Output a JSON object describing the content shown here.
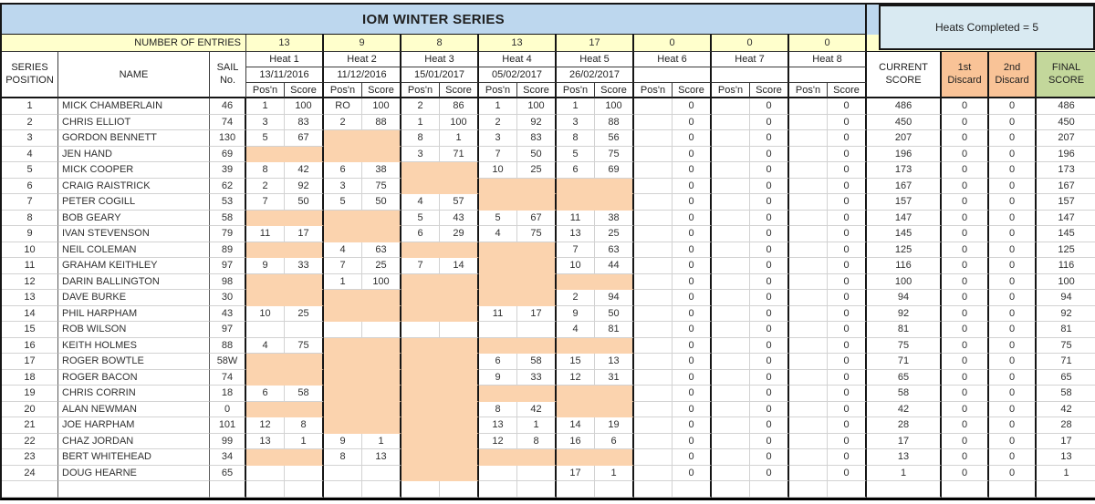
{
  "title": "IOM WINTER SERIES",
  "heats_completed": "Heats Completed = 5",
  "entries_label": "NUMBER OF ENTRIES",
  "left_headers": {
    "series": "SERIES POSITION",
    "name": "NAME",
    "sail": "SAIL No."
  },
  "subheaders": {
    "pos": "Pos'n",
    "score": "Score"
  },
  "right_headers": {
    "current": "CURRENT SCORE",
    "d1": "1st Discard",
    "d2": "2nd Discard",
    "final": "FINAL SCORE"
  },
  "heats": [
    {
      "label": "Heat 1",
      "date": "13/11/2016",
      "entries": "13"
    },
    {
      "label": "Heat 2",
      "date": "11/12/2016",
      "entries": "9"
    },
    {
      "label": "Heat 3",
      "date": "15/01/2017",
      "entries": "8"
    },
    {
      "label": "Heat 4",
      "date": "05/02/2017",
      "entries": "13"
    },
    {
      "label": "Heat 5",
      "date": "26/02/2017",
      "entries": "17"
    },
    {
      "label": "Heat 6",
      "date": "",
      "entries": "0"
    },
    {
      "label": "Heat 7",
      "date": "",
      "entries": "0"
    },
    {
      "label": "Heat 8",
      "date": "",
      "entries": "0"
    }
  ],
  "colors": {
    "title_bg": "#BDD7EE",
    "box_bg": "#D9EAF2",
    "yellow": "#FFFFCC",
    "orange": "#FBD3AE",
    "discard_hdr": "#F9C397",
    "final_hdr": "#C3D79B"
  },
  "rows": [
    {
      "pos": "1",
      "name": "MICK CHAMBERLAIN",
      "sail": "46",
      "h": [
        [
          "1",
          "100",
          "w"
        ],
        [
          "RO",
          "100",
          "w"
        ],
        [
          "2",
          "86",
          "w"
        ],
        [
          "1",
          "100",
          "w"
        ],
        [
          "1",
          "100",
          "w"
        ],
        [
          "",
          "0",
          "w"
        ],
        [
          "",
          "0",
          "w"
        ],
        [
          "",
          "0",
          "w"
        ]
      ],
      "current": "486",
      "d1": "0",
      "d2": "0",
      "final": "486"
    },
    {
      "pos": "2",
      "name": "CHRIS ELLIOT",
      "sail": "74",
      "h": [
        [
          "3",
          "83",
          "w"
        ],
        [
          "2",
          "88",
          "w"
        ],
        [
          "1",
          "100",
          "w"
        ],
        [
          "2",
          "92",
          "w"
        ],
        [
          "3",
          "88",
          "w"
        ],
        [
          "",
          "0",
          "w"
        ],
        [
          "",
          "0",
          "w"
        ],
        [
          "",
          "0",
          "w"
        ]
      ],
      "current": "450",
      "d1": "0",
      "d2": "0",
      "final": "450"
    },
    {
      "pos": "3",
      "name": "GORDON BENNETT",
      "sail": "130",
      "h": [
        [
          "5",
          "67",
          "w"
        ],
        [
          "",
          "",
          "o"
        ],
        [
          "8",
          "1",
          "w"
        ],
        [
          "3",
          "83",
          "w"
        ],
        [
          "8",
          "56",
          "w"
        ],
        [
          "",
          "0",
          "w"
        ],
        [
          "",
          "0",
          "w"
        ],
        [
          "",
          "0",
          "w"
        ]
      ],
      "current": "207",
      "d1": "0",
      "d2": "0",
      "final": "207"
    },
    {
      "pos": "4",
      "name": "JEN HAND",
      "sail": "69",
      "h": [
        [
          "",
          "",
          "o"
        ],
        [
          "",
          "",
          "o"
        ],
        [
          "3",
          "71",
          "w"
        ],
        [
          "7",
          "50",
          "w"
        ],
        [
          "5",
          "75",
          "w"
        ],
        [
          "",
          "0",
          "w"
        ],
        [
          "",
          "0",
          "w"
        ],
        [
          "",
          "0",
          "w"
        ]
      ],
      "current": "196",
      "d1": "0",
      "d2": "0",
      "final": "196"
    },
    {
      "pos": "5",
      "name": "MICK COOPER",
      "sail": "39",
      "h": [
        [
          "8",
          "42",
          "w"
        ],
        [
          "6",
          "38",
          "w"
        ],
        [
          "",
          "",
          "o"
        ],
        [
          "10",
          "25",
          "w"
        ],
        [
          "6",
          "69",
          "w"
        ],
        [
          "",
          "0",
          "w"
        ],
        [
          "",
          "0",
          "w"
        ],
        [
          "",
          "0",
          "w"
        ]
      ],
      "current": "173",
      "d1": "0",
      "d2": "0",
      "final": "173"
    },
    {
      "pos": "6",
      "name": "CRAIG RAISTRICK",
      "sail": "62",
      "h": [
        [
          "2",
          "92",
          "w"
        ],
        [
          "3",
          "75",
          "w"
        ],
        [
          "",
          "",
          "o"
        ],
        [
          "",
          "",
          "o"
        ],
        [
          "",
          "",
          "o"
        ],
        [
          "",
          "0",
          "w"
        ],
        [
          "",
          "0",
          "w"
        ],
        [
          "",
          "0",
          "w"
        ]
      ],
      "current": "167",
      "d1": "0",
      "d2": "0",
      "final": "167"
    },
    {
      "pos": "7",
      "name": "PETER COGILL",
      "sail": "53",
      "h": [
        [
          "7",
          "50",
          "w"
        ],
        [
          "5",
          "50",
          "w"
        ],
        [
          "4",
          "57",
          "w"
        ],
        [
          "",
          "",
          "o"
        ],
        [
          "",
          "",
          "o"
        ],
        [
          "",
          "0",
          "w"
        ],
        [
          "",
          "0",
          "w"
        ],
        [
          "",
          "0",
          "w"
        ]
      ],
      "current": "157",
      "d1": "0",
      "d2": "0",
      "final": "157"
    },
    {
      "pos": "8",
      "name": "BOB GEARY",
      "sail": "58",
      "h": [
        [
          "",
          "",
          "o"
        ],
        [
          "",
          "",
          "o"
        ],
        [
          "5",
          "43",
          "w"
        ],
        [
          "5",
          "67",
          "w"
        ],
        [
          "11",
          "38",
          "w"
        ],
        [
          "",
          "0",
          "w"
        ],
        [
          "",
          "0",
          "w"
        ],
        [
          "",
          "0",
          "w"
        ]
      ],
      "current": "147",
      "d1": "0",
      "d2": "0",
      "final": "147"
    },
    {
      "pos": "9",
      "name": "IVAN STEVENSON",
      "sail": "79",
      "h": [
        [
          "11",
          "17",
          "w"
        ],
        [
          "",
          "",
          "o"
        ],
        [
          "6",
          "29",
          "w"
        ],
        [
          "4",
          "75",
          "w"
        ],
        [
          "13",
          "25",
          "w"
        ],
        [
          "",
          "0",
          "w"
        ],
        [
          "",
          "0",
          "w"
        ],
        [
          "",
          "0",
          "w"
        ]
      ],
      "current": "145",
      "d1": "0",
      "d2": "0",
      "final": "145"
    },
    {
      "pos": "10",
      "name": "NEIL COLEMAN",
      "sail": "89",
      "h": [
        [
          "",
          "",
          "o"
        ],
        [
          "4",
          "63",
          "w"
        ],
        [
          "",
          "",
          "o"
        ],
        [
          "",
          "",
          "o"
        ],
        [
          "7",
          "63",
          "w"
        ],
        [
          "",
          "0",
          "w"
        ],
        [
          "",
          "0",
          "w"
        ],
        [
          "",
          "0",
          "w"
        ]
      ],
      "current": "125",
      "d1": "0",
      "d2": "0",
      "final": "125"
    },
    {
      "pos": "11",
      "name": "GRAHAM KEITHLEY",
      "sail": "97",
      "h": [
        [
          "9",
          "33",
          "w"
        ],
        [
          "7",
          "25",
          "w"
        ],
        [
          "7",
          "14",
          "w"
        ],
        [
          "",
          "",
          "o"
        ],
        [
          "10",
          "44",
          "w"
        ],
        [
          "",
          "0",
          "w"
        ],
        [
          "",
          "0",
          "w"
        ],
        [
          "",
          "0",
          "w"
        ]
      ],
      "current": "116",
      "d1": "0",
      "d2": "0",
      "final": "116"
    },
    {
      "pos": "12",
      "name": "DARIN BALLINGTON",
      "sail": "98",
      "h": [
        [
          "",
          "",
          "o"
        ],
        [
          "1",
          "100",
          "w"
        ],
        [
          "",
          "",
          "o"
        ],
        [
          "",
          "",
          "o"
        ],
        [
          "",
          "",
          "o"
        ],
        [
          "",
          "0",
          "w"
        ],
        [
          "",
          "0",
          "w"
        ],
        [
          "",
          "0",
          "w"
        ]
      ],
      "current": "100",
      "d1": "0",
      "d2": "0",
      "final": "100"
    },
    {
      "pos": "13",
      "name": "DAVE BURKE",
      "sail": "30",
      "h": [
        [
          "",
          "",
          "o"
        ],
        [
          "",
          "",
          "o"
        ],
        [
          "",
          "",
          "o"
        ],
        [
          "",
          "",
          "o"
        ],
        [
          "2",
          "94",
          "w"
        ],
        [
          "",
          "0",
          "w"
        ],
        [
          "",
          "0",
          "w"
        ],
        [
          "",
          "0",
          "w"
        ]
      ],
      "current": "94",
      "d1": "0",
      "d2": "0",
      "final": "94"
    },
    {
      "pos": "14",
      "name": "PHIL HARPHAM",
      "sail": "43",
      "h": [
        [
          "10",
          "25",
          "w"
        ],
        [
          "",
          "",
          "o"
        ],
        [
          "",
          "",
          "o"
        ],
        [
          "11",
          "17",
          "w"
        ],
        [
          "9",
          "50",
          "w"
        ],
        [
          "",
          "0",
          "w"
        ],
        [
          "",
          "0",
          "w"
        ],
        [
          "",
          "0",
          "w"
        ]
      ],
      "current": "92",
      "d1": "0",
      "d2": "0",
      "final": "92"
    },
    {
      "pos": "15",
      "name": "ROB WILSON",
      "sail": "97",
      "h": [
        [
          "",
          "",
          "w"
        ],
        [
          "",
          "",
          "w"
        ],
        [
          "",
          "",
          "w"
        ],
        [
          "",
          "",
          "w"
        ],
        [
          "4",
          "81",
          "w"
        ],
        [
          "",
          "0",
          "w"
        ],
        [
          "",
          "0",
          "w"
        ],
        [
          "",
          "0",
          "w"
        ]
      ],
      "current": "81",
      "d1": "0",
      "d2": "0",
      "final": "81"
    },
    {
      "pos": "16",
      "name": "KEITH HOLMES",
      "sail": "88",
      "h": [
        [
          "4",
          "75",
          "w"
        ],
        [
          "",
          "",
          "o"
        ],
        [
          "",
          "",
          "o"
        ],
        [
          "",
          "",
          "o"
        ],
        [
          "",
          "",
          "o"
        ],
        [
          "",
          "0",
          "w"
        ],
        [
          "",
          "0",
          "w"
        ],
        [
          "",
          "0",
          "w"
        ]
      ],
      "current": "75",
      "d1": "0",
      "d2": "0",
      "final": "75"
    },
    {
      "pos": "17",
      "name": "ROGER BOWTLE",
      "sail": "58W",
      "h": [
        [
          "",
          "",
          "o"
        ],
        [
          "",
          "",
          "o"
        ],
        [
          "",
          "",
          "o"
        ],
        [
          "6",
          "58",
          "w"
        ],
        [
          "15",
          "13",
          "w"
        ],
        [
          "",
          "0",
          "w"
        ],
        [
          "",
          "0",
          "w"
        ],
        [
          "",
          "0",
          "w"
        ]
      ],
      "current": "71",
      "d1": "0",
      "d2": "0",
      "final": "71"
    },
    {
      "pos": "18",
      "name": "ROGER BACON",
      "sail": "74",
      "h": [
        [
          "",
          "",
          "o"
        ],
        [
          "",
          "",
          "o"
        ],
        [
          "",
          "",
          "o"
        ],
        [
          "9",
          "33",
          "w"
        ],
        [
          "12",
          "31",
          "w"
        ],
        [
          "",
          "0",
          "w"
        ],
        [
          "",
          "0",
          "w"
        ],
        [
          "",
          "0",
          "w"
        ]
      ],
      "current": "65",
      "d1": "0",
      "d2": "0",
      "final": "65"
    },
    {
      "pos": "19",
      "name": "CHRIS CORRIN",
      "sail": "18",
      "h": [
        [
          "6",
          "58",
          "w"
        ],
        [
          "",
          "",
          "o"
        ],
        [
          "",
          "",
          "o"
        ],
        [
          "",
          "",
          "o"
        ],
        [
          "",
          "",
          "o"
        ],
        [
          "",
          "0",
          "w"
        ],
        [
          "",
          "0",
          "w"
        ],
        [
          "",
          "0",
          "w"
        ]
      ],
      "current": "58",
      "d1": "0",
      "d2": "0",
      "final": "58"
    },
    {
      "pos": "20",
      "name": "ALAN NEWMAN",
      "sail": "0",
      "h": [
        [
          "",
          "",
          "o"
        ],
        [
          "",
          "",
          "o"
        ],
        [
          "",
          "",
          "o"
        ],
        [
          "8",
          "42",
          "w"
        ],
        [
          "",
          "",
          "o"
        ],
        [
          "",
          "0",
          "w"
        ],
        [
          "",
          "0",
          "w"
        ],
        [
          "",
          "0",
          "w"
        ]
      ],
      "current": "42",
      "d1": "0",
      "d2": "0",
      "final": "42"
    },
    {
      "pos": "21",
      "name": "JOE HARPHAM",
      "sail": "101",
      "h": [
        [
          "12",
          "8",
          "w"
        ],
        [
          "",
          "",
          "o"
        ],
        [
          "",
          "",
          "o"
        ],
        [
          "13",
          "1",
          "w"
        ],
        [
          "14",
          "19",
          "w"
        ],
        [
          "",
          "0",
          "w"
        ],
        [
          "",
          "0",
          "w"
        ],
        [
          "",
          "0",
          "w"
        ]
      ],
      "current": "28",
      "d1": "0",
      "d2": "0",
      "final": "28"
    },
    {
      "pos": "22",
      "name": "CHAZ JORDAN",
      "sail": "99",
      "h": [
        [
          "13",
          "1",
          "w"
        ],
        [
          "9",
          "1",
          "w"
        ],
        [
          "",
          "",
          "o"
        ],
        [
          "12",
          "8",
          "w"
        ],
        [
          "16",
          "6",
          "w"
        ],
        [
          "",
          "0",
          "w"
        ],
        [
          "",
          "0",
          "w"
        ],
        [
          "",
          "0",
          "w"
        ]
      ],
      "current": "17",
      "d1": "0",
      "d2": "0",
      "final": "17"
    },
    {
      "pos": "23",
      "name": "BERT WHITEHEAD",
      "sail": "34",
      "h": [
        [
          "",
          "",
          "o"
        ],
        [
          "8",
          "13",
          "w"
        ],
        [
          "",
          "",
          "o"
        ],
        [
          "",
          "",
          "o"
        ],
        [
          "",
          "",
          "o"
        ],
        [
          "",
          "0",
          "w"
        ],
        [
          "",
          "0",
          "w"
        ],
        [
          "",
          "0",
          "w"
        ]
      ],
      "current": "13",
      "d1": "0",
      "d2": "0",
      "final": "13"
    },
    {
      "pos": "24",
      "name": "DOUG HEARNE",
      "sail": "65",
      "h": [
        [
          "",
          "",
          "w"
        ],
        [
          "",
          "",
          "w"
        ],
        [
          "",
          "",
          "o"
        ],
        [
          "",
          "",
          "w"
        ],
        [
          "17",
          "1",
          "w"
        ],
        [
          "",
          "0",
          "w"
        ],
        [
          "",
          "0",
          "w"
        ],
        [
          "",
          "0",
          "w"
        ]
      ],
      "current": "1",
      "d1": "0",
      "d2": "0",
      "final": "1"
    }
  ]
}
